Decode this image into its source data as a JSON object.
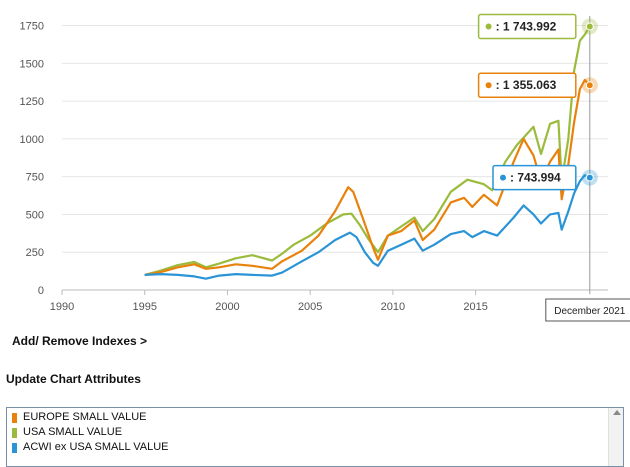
{
  "chart_data": {
    "type": "line",
    "x_ticks": [
      1990,
      1995,
      2000,
      2005,
      2010,
      2015
    ],
    "y_ticks": [
      "0",
      "250",
      "500",
      "750",
      "1000",
      "1250",
      "1500",
      "1750"
    ],
    "xlim": [
      1990,
      2023
    ],
    "ylim": [
      0,
      1800
    ],
    "grid": "horizontal",
    "series": [
      {
        "name": "USA SMALL VALUE",
        "color": "#9bbb3d",
        "tooltip": "1 743.992",
        "points": [
          [
            1995.0,
            100
          ],
          [
            1996.0,
            130
          ],
          [
            1997.0,
            165
          ],
          [
            1998.0,
            185
          ],
          [
            1998.7,
            150
          ],
          [
            1999.5,
            175
          ],
          [
            2000.5,
            210
          ],
          [
            2001.5,
            230
          ],
          [
            2002.7,
            195
          ],
          [
            2003.3,
            240
          ],
          [
            2004.0,
            300
          ],
          [
            2005.0,
            360
          ],
          [
            2006.0,
            440
          ],
          [
            2007.0,
            500
          ],
          [
            2007.5,
            505
          ],
          [
            2008.0,
            430
          ],
          [
            2008.5,
            340
          ],
          [
            2009.1,
            250
          ],
          [
            2009.7,
            360
          ],
          [
            2010.5,
            420
          ],
          [
            2011.3,
            480
          ],
          [
            2011.8,
            390
          ],
          [
            2012.5,
            470
          ],
          [
            2013.5,
            650
          ],
          [
            2014.5,
            730
          ],
          [
            2015.5,
            700
          ],
          [
            2016.0,
            660
          ],
          [
            2016.8,
            850
          ],
          [
            2017.5,
            960
          ],
          [
            2018.5,
            1080
          ],
          [
            2018.95,
            900
          ],
          [
            2019.5,
            1100
          ],
          [
            2020.0,
            1120
          ],
          [
            2020.2,
            720
          ],
          [
            2020.6,
            1000
          ],
          [
            2020.95,
            1450
          ],
          [
            2021.3,
            1650
          ],
          [
            2021.6,
            1690
          ],
          [
            2021.9,
            1744
          ]
        ]
      },
      {
        "name": "EUROPE SMALL VALUE",
        "color": "#e8820c",
        "tooltip": "1 355.063",
        "points": [
          [
            1995.0,
            100
          ],
          [
            1996.0,
            120
          ],
          [
            1997.0,
            150
          ],
          [
            1998.0,
            170
          ],
          [
            1998.7,
            140
          ],
          [
            1999.5,
            150
          ],
          [
            2000.5,
            170
          ],
          [
            2001.5,
            160
          ],
          [
            2002.7,
            140
          ],
          [
            2003.3,
            190
          ],
          [
            2004.5,
            260
          ],
          [
            2005.5,
            360
          ],
          [
            2006.5,
            520
          ],
          [
            2007.3,
            680
          ],
          [
            2007.6,
            650
          ],
          [
            2008.2,
            470
          ],
          [
            2008.8,
            280
          ],
          [
            2009.1,
            200
          ],
          [
            2009.7,
            360
          ],
          [
            2010.5,
            390
          ],
          [
            2011.3,
            460
          ],
          [
            2011.8,
            330
          ],
          [
            2012.5,
            400
          ],
          [
            2013.5,
            580
          ],
          [
            2014.3,
            610
          ],
          [
            2014.8,
            550
          ],
          [
            2015.5,
            630
          ],
          [
            2016.3,
            560
          ],
          [
            2017.3,
            850
          ],
          [
            2017.9,
            1000
          ],
          [
            2018.5,
            890
          ],
          [
            2018.95,
            720
          ],
          [
            2019.5,
            850
          ],
          [
            2020.0,
            930
          ],
          [
            2020.2,
            600
          ],
          [
            2020.6,
            830
          ],
          [
            2020.95,
            1110
          ],
          [
            2021.3,
            1330
          ],
          [
            2021.6,
            1390
          ],
          [
            2021.9,
            1355
          ]
        ]
      },
      {
        "name": "ACWI ex USA SMALL VALUE",
        "color": "#2a94d6",
        "tooltip": "743.994",
        "points": [
          [
            1995.0,
            100
          ],
          [
            1996.0,
            105
          ],
          [
            1997.0,
            100
          ],
          [
            1998.0,
            90
          ],
          [
            1998.7,
            75
          ],
          [
            1999.5,
            95
          ],
          [
            2000.5,
            105
          ],
          [
            2001.5,
            100
          ],
          [
            2002.7,
            95
          ],
          [
            2003.3,
            115
          ],
          [
            2004.5,
            190
          ],
          [
            2005.5,
            250
          ],
          [
            2006.5,
            330
          ],
          [
            2007.4,
            380
          ],
          [
            2007.8,
            350
          ],
          [
            2008.3,
            250
          ],
          [
            2008.8,
            180
          ],
          [
            2009.1,
            160
          ],
          [
            2009.7,
            260
          ],
          [
            2010.5,
            300
          ],
          [
            2011.3,
            340
          ],
          [
            2011.8,
            260
          ],
          [
            2012.5,
            300
          ],
          [
            2013.5,
            370
          ],
          [
            2014.3,
            390
          ],
          [
            2014.8,
            350
          ],
          [
            2015.5,
            390
          ],
          [
            2016.3,
            360
          ],
          [
            2017.3,
            480
          ],
          [
            2017.9,
            560
          ],
          [
            2018.5,
            500
          ],
          [
            2018.95,
            440
          ],
          [
            2019.5,
            500
          ],
          [
            2020.0,
            510
          ],
          [
            2020.2,
            400
          ],
          [
            2020.6,
            520
          ],
          [
            2020.95,
            640
          ],
          [
            2021.3,
            720
          ],
          [
            2021.6,
            760
          ],
          [
            2021.9,
            744
          ]
        ]
      }
    ],
    "crosshair": {
      "x": 2021.9,
      "label": "December 2021"
    }
  },
  "controls": {
    "add_remove": "Add/ Remove Indexes >",
    "update_attributes": "Update Chart Attributes"
  },
  "legend_items": [
    {
      "name": "EUROPE SMALL VALUE",
      "color": "#e8820c"
    },
    {
      "name": "USA SMALL VALUE",
      "color": "#9bbb3d"
    },
    {
      "name": "ACWI ex USA SMALL VALUE",
      "color": "#2a94d6"
    }
  ]
}
